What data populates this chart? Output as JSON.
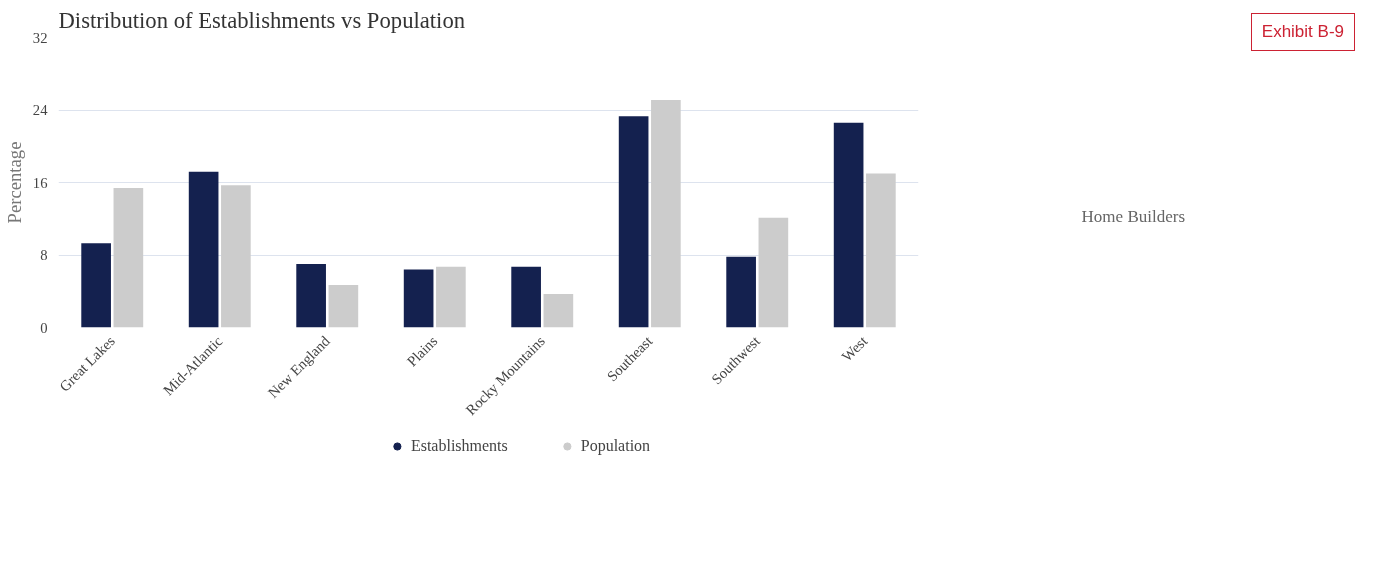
{
  "chart_data": {
    "type": "bar",
    "title": "Distribution of Establishments vs Population",
    "ylabel": "Percentage",
    "categories": [
      "Great Lakes",
      "Mid-Atlantic",
      "New England",
      "Plains",
      "Rocky Mountains",
      "Southeast",
      "Southwest",
      "West"
    ],
    "series": [
      {
        "name": "Establishments",
        "color": "#14214f",
        "values": [
          9.3,
          17.2,
          7.0,
          6.4,
          6.7,
          23.3,
          7.8,
          22.6
        ]
      },
      {
        "name": "Population",
        "color": "#cccccc",
        "values": [
          15.4,
          15.7,
          4.7,
          6.7,
          3.7,
          25.1,
          12.1,
          17.0
        ]
      }
    ],
    "ylim": [
      0,
      32
    ],
    "yticks": [
      0,
      8,
      16,
      24,
      32
    ],
    "grid": "y",
    "legend": "bottom",
    "annotations": [
      "Exhibit B-9",
      "Home Builders"
    ]
  }
}
